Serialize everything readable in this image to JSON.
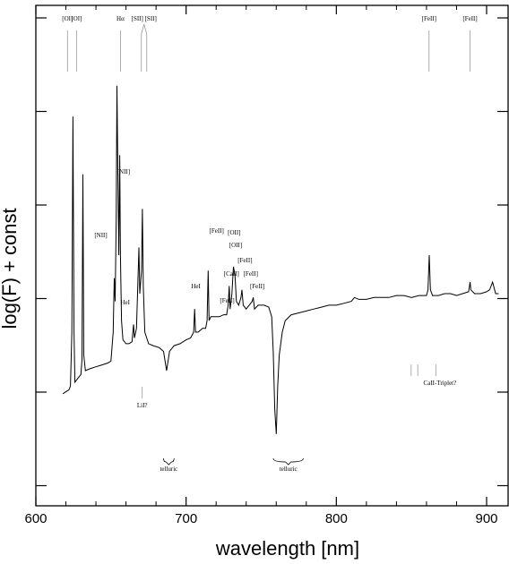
{
  "chart_data": {
    "type": "line",
    "xlabel": "wavelength [nm]",
    "ylabel": "log(F) + const",
    "xlim": [
      600,
      910
    ],
    "x_ticks": [
      600,
      700,
      800,
      900
    ],
    "y_ticks_count": 6,
    "grid": false,
    "series": [
      {
        "points": [
          [
            618,
            0.14
          ],
          [
            620,
            0.145
          ],
          [
            622,
            0.15
          ],
          [
            623,
            0.16
          ],
          [
            624,
            0.3
          ],
          [
            624.7,
            0.86
          ],
          [
            625.4,
            0.3
          ],
          [
            626,
            0.17
          ],
          [
            628,
            0.18
          ],
          [
            630,
            0.19
          ],
          [
            630.7,
            0.23
          ],
          [
            631.3,
            0.71
          ],
          [
            631.9,
            0.24
          ],
          [
            633,
            0.2
          ],
          [
            636,
            0.205
          ],
          [
            640,
            0.21
          ],
          [
            644,
            0.215
          ],
          [
            648,
            0.22
          ],
          [
            650,
            0.225
          ],
          [
            651.5,
            0.3
          ],
          [
            652.2,
            0.44
          ],
          [
            652.8,
            0.38
          ],
          [
            653.5,
            0.6
          ],
          [
            654,
            0.94
          ],
          [
            654.6,
            0.72
          ],
          [
            655.2,
            0.5
          ],
          [
            655.8,
            0.76
          ],
          [
            656.3,
            0.5
          ],
          [
            657,
            0.33
          ],
          [
            658,
            0.28
          ],
          [
            660,
            0.27
          ],
          [
            662,
            0.27
          ],
          [
            664,
            0.275
          ],
          [
            665,
            0.32
          ],
          [
            665.6,
            0.285
          ],
          [
            667,
            0.31
          ],
          [
            668,
            0.44
          ],
          [
            668.6,
            0.52
          ],
          [
            669.2,
            0.4
          ],
          [
            670.3,
            0.46
          ],
          [
            670.9,
            0.62
          ],
          [
            671.5,
            0.42
          ],
          [
            672.5,
            0.3
          ],
          [
            675,
            0.27
          ],
          [
            678,
            0.265
          ],
          [
            682,
            0.26
          ],
          [
            685,
            0.25
          ],
          [
            687,
            0.2
          ],
          [
            689,
            0.25
          ],
          [
            692,
            0.265
          ],
          [
            696,
            0.27
          ],
          [
            700,
            0.28
          ],
          [
            703,
            0.285
          ],
          [
            705,
            0.3
          ],
          [
            705.7,
            0.36
          ],
          [
            706.3,
            0.3
          ],
          [
            708,
            0.3
          ],
          [
            711,
            0.31
          ],
          [
            713,
            0.31
          ],
          [
            714,
            0.33
          ],
          [
            714.7,
            0.46
          ],
          [
            715.3,
            0.33
          ],
          [
            716.5,
            0.34
          ],
          [
            719,
            0.34
          ],
          [
            722,
            0.34
          ],
          [
            725,
            0.345
          ],
          [
            727,
            0.345
          ],
          [
            728,
            0.37
          ],
          [
            728.7,
            0.42
          ],
          [
            729.3,
            0.36
          ],
          [
            730.5,
            0.4
          ],
          [
            731.5,
            0.47
          ],
          [
            732.5,
            0.45
          ],
          [
            733.5,
            0.38
          ],
          [
            735,
            0.37
          ],
          [
            736.5,
            0.39
          ],
          [
            737.2,
            0.41
          ],
          [
            738,
            0.37
          ],
          [
            740,
            0.36
          ],
          [
            742,
            0.37
          ],
          [
            744,
            0.38
          ],
          [
            744.7,
            0.39
          ],
          [
            745.5,
            0.36
          ],
          [
            748,
            0.37
          ],
          [
            752,
            0.37
          ],
          [
            755,
            0.365
          ],
          [
            757,
            0.34
          ],
          [
            758,
            0.25
          ],
          [
            759,
            0.1
          ],
          [
            760,
            0.035
          ],
          [
            761,
            0.16
          ],
          [
            762,
            0.24
          ],
          [
            764,
            0.3
          ],
          [
            766,
            0.33
          ],
          [
            770,
            0.345
          ],
          [
            775,
            0.35
          ],
          [
            780,
            0.355
          ],
          [
            785,
            0.36
          ],
          [
            790,
            0.365
          ],
          [
            795,
            0.37
          ],
          [
            800,
            0.37
          ],
          [
            805,
            0.375
          ],
          [
            810,
            0.38
          ],
          [
            812,
            0.39
          ],
          [
            815,
            0.385
          ],
          [
            820,
            0.385
          ],
          [
            825,
            0.39
          ],
          [
            830,
            0.39
          ],
          [
            835,
            0.39
          ],
          [
            840,
            0.395
          ],
          [
            845,
            0.395
          ],
          [
            850,
            0.39
          ],
          [
            855,
            0.395
          ],
          [
            860,
            0.395
          ],
          [
            861,
            0.41
          ],
          [
            861.8,
            0.5
          ],
          [
            862.6,
            0.41
          ],
          [
            864,
            0.395
          ],
          [
            868,
            0.395
          ],
          [
            872,
            0.4
          ],
          [
            876,
            0.4
          ],
          [
            880,
            0.395
          ],
          [
            884,
            0.4
          ],
          [
            888,
            0.405
          ],
          [
            889,
            0.43
          ],
          [
            889.5,
            0.41
          ],
          [
            892,
            0.4
          ],
          [
            896,
            0.4
          ],
          [
            900,
            0.405
          ],
          [
            902,
            0.41
          ],
          [
            904,
            0.43
          ],
          [
            906,
            0.4
          ],
          [
            908,
            0.4
          ]
        ]
      }
    ],
    "annotations": {
      "top_lines": [
        {
          "label": "[OI]",
          "x": 630
        },
        {
          "label": "[OI]",
          "x": 636
        },
        {
          "label": "Hα",
          "x": 656.3
        },
        {
          "label": "[SII] [SII]",
          "x": 672
        },
        {
          "label": "[FeII]",
          "x": 861.7
        },
        {
          "label": "[FeII]",
          "x": 889
        }
      ],
      "peak_labels": [
        {
          "label": "[NII]",
          "x": 658.4
        },
        {
          "label": "[NII]",
          "x": 654
        },
        {
          "label": "HeI",
          "x": 667.8
        },
        {
          "label": "HeI",
          "x": 706.5
        },
        {
          "label": "[FeII]",
          "x": 715.5
        },
        {
          "label": "[FeII]",
          "x": 725
        },
        {
          "label": "[CaII]",
          "x": 729
        },
        {
          "label": "[OII]",
          "x": 732
        },
        {
          "label": "[OII]",
          "x": 733
        },
        {
          "label": "[FeII]",
          "x": 738
        },
        {
          "label": "[FeII]",
          "x": 743
        },
        {
          "label": "[FeII]",
          "x": 745
        }
      ],
      "below_labels": [
        {
          "label": "LiI?",
          "x": 670.8
        },
        {
          "label": "CaII-Triplet?",
          "x": 857
        },
        {
          "label": "telluric",
          "x": 688
        },
        {
          "label": "telluric",
          "x": 762
        }
      ]
    }
  }
}
